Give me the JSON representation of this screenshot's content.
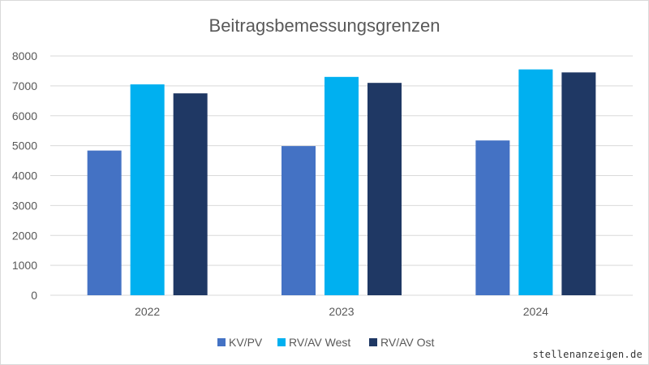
{
  "chart_data": {
    "type": "bar",
    "title": "Beitragsbemessungsgrenzen",
    "categories": [
      "2022",
      "2023",
      "2024"
    ],
    "series": [
      {
        "name": "KV/PV",
        "values": [
          4837.5,
          4987.5,
          5175
        ],
        "color": "#4472c4"
      },
      {
        "name": "RV/AV West",
        "values": [
          7050,
          7300,
          7550
        ],
        "color": "#00b0f0"
      },
      {
        "name": "RV/AV Ost",
        "values": [
          6750,
          7100,
          7450
        ],
        "color": "#1f3864"
      }
    ],
    "ylim": [
      0,
      8000
    ],
    "yticks": [
      0,
      1000,
      2000,
      3000,
      4000,
      5000,
      6000,
      7000,
      8000
    ],
    "grid": true,
    "legend_position": "bottom",
    "xlabel": "",
    "ylabel": ""
  },
  "watermark": "stellenanzeigen.de",
  "colors": {
    "gridline": "#d9d9d9",
    "text": "#595959"
  }
}
